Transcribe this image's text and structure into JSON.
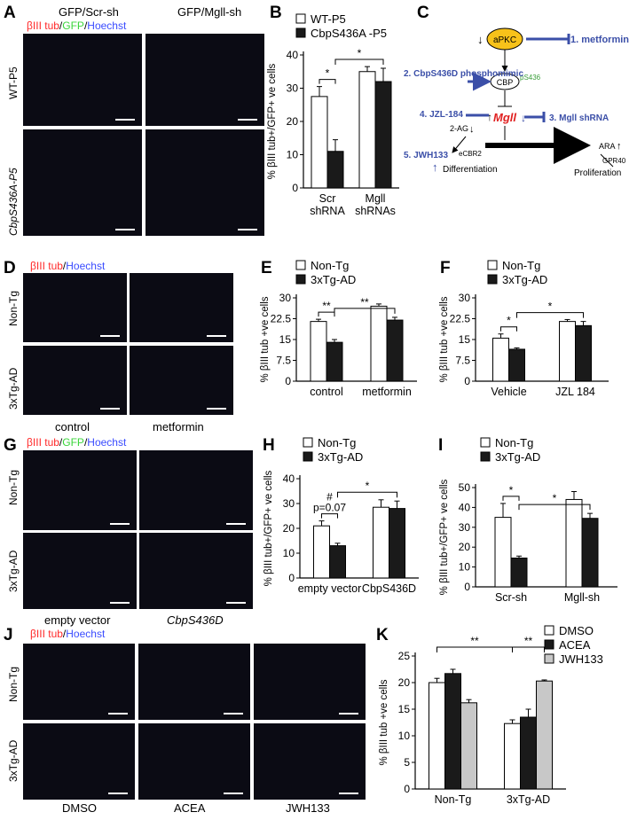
{
  "panels": {
    "A": {
      "letter": "A",
      "col_headers": [
        "GFP/Scr-sh",
        "GFP/Mgll-sh"
      ],
      "legend": {
        "p1": "βIII tub",
        "s1": "/",
        "p2": "GFP",
        "s2": "/",
        "p3": "Hoechst"
      },
      "row_labels": [
        "WT-P5",
        "CbpS436A-P5"
      ]
    },
    "B": {
      "letter": "B"
    },
    "C": {
      "letter": "C",
      "nodes": {
        "aPKC": "aPKC",
        "CBP": "CBP",
        "pS436": "pS436",
        "Mgll": "Mgll",
        "two_ag": "2-AG",
        "ecbr2": "eCBR2",
        "ara": "ARA",
        "gpr40": "GPR40",
        "diff": "Differentiation",
        "prolif": "Proliferation"
      },
      "interventions": [
        "1. metformin",
        "2. CbpS436D phosphomimic",
        "3. Mgll shRNA",
        "4. JZL-184",
        "5. JWH133"
      ]
    },
    "D": {
      "letter": "D",
      "legend": {
        "p1": "βIII tub",
        "s1": "/",
        "p3": "Hoechst"
      },
      "row_labels": [
        "Non-Tg",
        "3xTg-AD"
      ],
      "col_labels": [
        "control",
        "metformin"
      ]
    },
    "E": {
      "letter": "E"
    },
    "F": {
      "letter": "F"
    },
    "G": {
      "letter": "G",
      "legend": {
        "p1": "βIII tub",
        "s1": "/",
        "p2": "GFP",
        "s2": "/",
        "p3": "Hoechst"
      },
      "row_labels": [
        "Non-Tg",
        "3xTg-AD"
      ],
      "col_labels": [
        "empty vector",
        "CbpS436D"
      ]
    },
    "H": {
      "letter": "H"
    },
    "I": {
      "letter": "I"
    },
    "J": {
      "letter": "J",
      "legend": {
        "p1": "βIII tub",
        "s1": "/",
        "p3": "Hoechst"
      },
      "row_labels": [
        "Non-Tg",
        "3xTg-AD"
      ],
      "col_labels": [
        "DMSO",
        "ACEA",
        "JWH133"
      ]
    },
    "K": {
      "letter": "K"
    }
  },
  "chart_data": [
    {
      "id": "B",
      "type": "bar",
      "categories": [
        [
          "Scr",
          "shRNA"
        ],
        [
          "Mgll",
          "shRNAs"
        ]
      ],
      "series": [
        {
          "name": "WT-P5",
          "values": [
            27.5,
            35
          ],
          "errors": [
            3,
            1.5
          ],
          "fill": "#ffffff"
        },
        {
          "name": "CbpS436A -P5",
          "values": [
            11,
            32
          ],
          "errors": [
            3.5,
            4
          ],
          "fill": "#1a1a1a"
        }
      ],
      "ylabel": "% βIII tub+/GFP+ ve cells",
      "ylim": [
        0,
        40
      ],
      "yticks": [
        0,
        10,
        20,
        30,
        40
      ],
      "sig": [
        "*",
        "*"
      ]
    },
    {
      "id": "E",
      "type": "bar",
      "categories": [
        "control",
        "metformin"
      ],
      "series": [
        {
          "name": "Non-Tg",
          "values": [
            21.5,
            27
          ],
          "errors": [
            0.8,
            0.8
          ],
          "fill": "#ffffff"
        },
        {
          "name": "3xTg-AD",
          "values": [
            14,
            22
          ],
          "errors": [
            1,
            1
          ],
          "fill": "#1a1a1a"
        }
      ],
      "ylabel": "% βIII tub +ve cells",
      "ylim": [
        0,
        30
      ],
      "yticks": [
        0,
        7.5,
        15,
        22.5,
        30
      ],
      "sig": [
        "**",
        "**"
      ]
    },
    {
      "id": "F",
      "type": "bar",
      "categories": [
        "Vehicle",
        "JZL 184"
      ],
      "series": [
        {
          "name": "Non-Tg",
          "values": [
            15.5,
            21.5
          ],
          "errors": [
            1.5,
            0.7
          ],
          "fill": "#ffffff"
        },
        {
          "name": "3xTg-AD",
          "values": [
            11.5,
            20
          ],
          "errors": [
            0.5,
            1.5
          ],
          "fill": "#1a1a1a"
        }
      ],
      "ylabel": "% βIII tub +ve cells",
      "ylim": [
        0,
        30
      ],
      "yticks": [
        0,
        7.5,
        15,
        22.5,
        30
      ],
      "sig": [
        "*",
        "*"
      ]
    },
    {
      "id": "H",
      "type": "bar",
      "categories": [
        "empty vector",
        "CbpS436D"
      ],
      "series": [
        {
          "name": "Non-Tg",
          "values": [
            21,
            28.5
          ],
          "errors": [
            2,
            3
          ],
          "fill": "#ffffff"
        },
        {
          "name": "3xTg-AD",
          "values": [
            13,
            28
          ],
          "errors": [
            1,
            3
          ],
          "fill": "#1a1a1a"
        }
      ],
      "ylabel": "% βIII tub+/GFP+ ve cells",
      "ylim": [
        0,
        40
      ],
      "yticks": [
        0,
        10,
        20,
        30,
        40
      ],
      "sig": [
        "#\np=0.07",
        "*"
      ]
    },
    {
      "id": "I",
      "type": "bar",
      "categories": [
        "Scr-sh",
        "Mgll-sh"
      ],
      "series": [
        {
          "name": "Non-Tg",
          "values": [
            35,
            44
          ],
          "errors": [
            7,
            4
          ],
          "fill": "#ffffff"
        },
        {
          "name": "3xTg-AD",
          "values": [
            14.5,
            34.5
          ],
          "errors": [
            1,
            2.5
          ],
          "fill": "#1a1a1a"
        }
      ],
      "ylabel": "% βIII tub+/GFP+ ve cells",
      "ylim": [
        0,
        50
      ],
      "yticks": [
        0,
        10,
        20,
        30,
        40,
        50
      ],
      "sig": [
        "*",
        "*"
      ]
    },
    {
      "id": "K",
      "type": "bar",
      "categories": [
        "Non-Tg",
        "3xTg-AD"
      ],
      "series": [
        {
          "name": "DMSO",
          "values": [
            20,
            12.3
          ],
          "errors": [
            0.8,
            0.7
          ],
          "fill": "#ffffff"
        },
        {
          "name": "ACEA",
          "values": [
            21.7,
            13.5
          ],
          "errors": [
            0.8,
            1.5
          ],
          "fill": "#1a1a1a"
        },
        {
          "name": "JWH133",
          "values": [
            16.2,
            20.3
          ],
          "errors": [
            0.6,
            0.2
          ],
          "fill": "#c8c8c8"
        }
      ],
      "ylabel": "% βIII tub +ve cells",
      "ylim": [
        0,
        25
      ],
      "yticks": [
        0,
        5,
        10,
        15,
        20,
        25
      ],
      "sig": [
        "**",
        "**"
      ]
    }
  ]
}
